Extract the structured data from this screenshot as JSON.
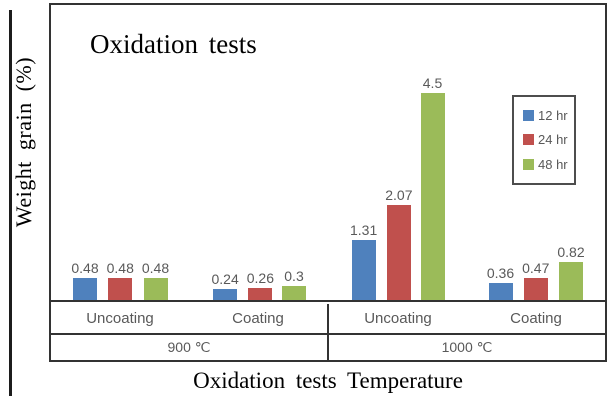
{
  "chart_data": {
    "type": "bar",
    "title": "Oxidation tests",
    "ylabel": "Weight grain (%)",
    "xlabel": "Oxidation tests Temperature",
    "ylim": [
      0,
      6.5
    ],
    "grid": false,
    "legend_position": "upper-right",
    "group_labels": [
      "900 ℃",
      "1000 ℃"
    ],
    "categories": [
      "Uncoating",
      "Coating",
      "Uncoating",
      "Coating"
    ],
    "category_group_index": [
      0,
      0,
      1,
      1
    ],
    "series": [
      {
        "name": "12 hr",
        "color": "#4F81BD",
        "values": [
          0.48,
          0.24,
          1.31,
          0.36
        ],
        "labels": [
          "0.48",
          "0.24",
          "1.31",
          "0.36"
        ]
      },
      {
        "name": "24 hr",
        "color": "#C0504D",
        "values": [
          0.48,
          0.26,
          2.07,
          0.47
        ],
        "labels": [
          "0.48",
          "0.26",
          "2.07",
          "0.47"
        ]
      },
      {
        "name": "48 hr",
        "color": "#9BBB59",
        "values": [
          0.48,
          0.3,
          4.5,
          0.82
        ],
        "labels": [
          "0.48",
          "0.3",
          "4.5",
          "0.82"
        ]
      }
    ]
  },
  "colors": {
    "series_12hr": "#4F81BD",
    "series_24hr": "#C0504D",
    "series_48hr": "#9BBB59",
    "axis_lines": "#333333",
    "value_label_text": "#595959",
    "axis_label_text": "#595959",
    "title_text": "#000000",
    "legend_border": "#4d4d4d",
    "background": "#ffffff"
  }
}
